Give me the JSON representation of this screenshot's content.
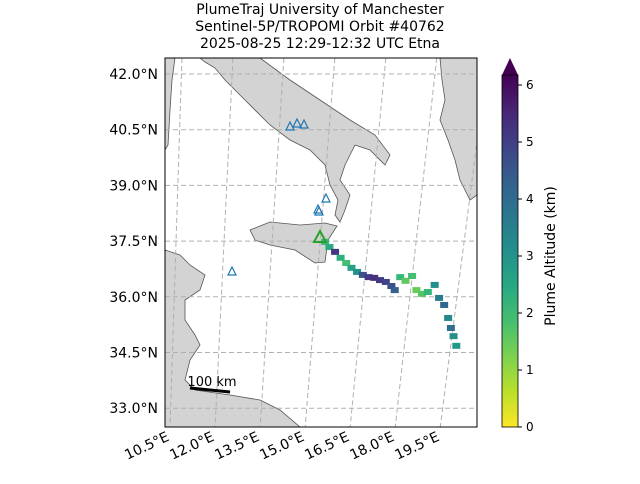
{
  "chart_data": {
    "type": "map",
    "title_lines": [
      "PlumeTraj    University of Manchester",
      "Sentinel-5P/TROPOMI Orbit #40762",
      "2025-08-25    12:29-12:32 UTC    Etna"
    ],
    "latticks": [
      {
        "value": 42.0,
        "label": "42.0°N"
      },
      {
        "value": 40.5,
        "label": "40.5°N"
      },
      {
        "value": 39.0,
        "label": "39.0°N"
      },
      {
        "value": 37.5,
        "label": "37.5°N"
      },
      {
        "value": 36.0,
        "label": "36.0°N"
      },
      {
        "value": 34.5,
        "label": "34.5°N"
      },
      {
        "value": 33.0,
        "label": "33.0°N"
      }
    ],
    "lonticks": [
      {
        "value": 10.5,
        "label": "10.5°E"
      },
      {
        "value": 12.0,
        "label": "12.0°E"
      },
      {
        "value": 13.5,
        "label": "13.5°E"
      },
      {
        "value": 15.0,
        "label": "15.0°E"
      },
      {
        "value": 16.5,
        "label": "16.5°E"
      },
      {
        "value": 18.0,
        "label": "18.0°E"
      },
      {
        "value": 19.5,
        "label": "19.5°E"
      }
    ],
    "colorbar": {
      "label": "Plume Altitude (km)",
      "colormap": "viridis_r",
      "lim": [
        0,
        6
      ],
      "ticks": [
        0,
        1,
        2,
        3,
        4,
        5,
        6
      ]
    },
    "scale_bar": "100 km",
    "plume": {
      "lon": [
        15.16,
        15.31,
        15.5,
        15.69,
        15.88,
        16.06,
        16.25,
        16.44,
        16.63,
        16.81,
        17.0,
        17.19,
        17.38,
        17.5,
        17.63,
        17.81,
        18.0,
        18.19,
        18.38,
        18.56,
        18.75,
        18.94,
        19.13,
        19.31,
        19.44,
        19.56,
        19.69
      ],
      "lat": [
        37.48,
        37.34,
        37.21,
        37.05,
        36.91,
        36.78,
        36.67,
        36.59,
        36.53,
        36.51,
        36.45,
        36.4,
        36.29,
        36.18,
        36.53,
        36.43,
        36.56,
        36.18,
        36.08,
        36.13,
        36.32,
        35.97,
        35.78,
        35.43,
        35.16,
        34.94,
        34.68
      ],
      "altitude": [
        2,
        2.3,
        5,
        2.2,
        1.8,
        2.5,
        3,
        4.5,
        5,
        5.2,
        5,
        4.8,
        4.5,
        4.2,
        2,
        1.5,
        1.8,
        1.4,
        1.6,
        2,
        3,
        3.5,
        4,
        3.2,
        3.8,
        3,
        2.8
      ]
    }
  }
}
